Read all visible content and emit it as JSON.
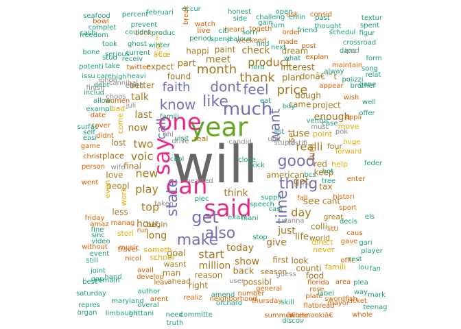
{
  "colors": {
    "green": "#1b9e77",
    "orange": "#d95f02",
    "purple": "#7570b3",
    "pink": "#e7298a",
    "lime": "#66a61e",
    "gold": "#e6ab02",
    "brown": "#a6761d",
    "gray": "#666666",
    "grayLight": "#8a8a8a",
    "tealLight": "#5fae8f"
  },
  "words": [
    {
      "text": "will",
      "color": "gray"
    },
    {
      "text": "year",
      "color": "lime"
    },
    {
      "text": "one",
      "color": "pink"
    },
    {
      "text": "said",
      "color": "pink"
    },
    {
      "text": "can",
      "color": "pink"
    },
    {
      "text": "say",
      "color": "pink"
    },
    {
      "text": "much",
      "color": "purple"
    },
    {
      "text": "also",
      "color": "purple"
    },
    {
      "text": "get",
      "color": "purple"
    },
    {
      "text": "thing",
      "color": "purple"
    },
    {
      "text": "good",
      "color": "purple"
    },
    {
      "text": "make",
      "color": "purple"
    },
    {
      "text": "like",
      "color": "purple"
    },
    {
      "text": "time",
      "color": "purple"
    },
    {
      "text": "state",
      "color": "purple"
    },
    {
      "text": "feel",
      "color": "purple"
    },
    {
      "text": "want",
      "color": "purple"
    },
    {
      "text": "know",
      "color": "purple"
    },
    {
      "text": "dont",
      "color": "purple"
    },
    {
      "text": "faith",
      "color": "purple"
    },
    {
      "text": "call",
      "color": "purple"
    },
    {
      "text": "price",
      "color": "brown"
    },
    {
      "text": "thank",
      "color": "brown"
    },
    {
      "text": "month",
      "color": "brown"
    },
    {
      "text": "new",
      "color": "brown"
    },
    {
      "text": "two",
      "color": "brown"
    },
    {
      "text": "day",
      "color": "brown"
    },
    {
      "text": "top",
      "color": "brown"
    },
    {
      "text": "play",
      "color": "brown"
    },
    {
      "text": "product",
      "color": "brown"
    },
    {
      "text": "today",
      "color": "brown"
    },
    {
      "text": "start",
      "color": "brown"
    },
    {
      "text": "give",
      "color": "brown"
    },
    {
      "text": "show",
      "color": "brown"
    },
    {
      "text": "million",
      "color": "brown"
    },
    {
      "text": "just",
      "color": "brown"
    },
    {
      "text": "realli",
      "color": "brown"
    },
    {
      "text": "see",
      "color": "brown"
    },
    {
      "text": "voic",
      "color": "brown"
    },
    {
      "text": "hour",
      "color": "brown"
    },
    {
      "text": "long",
      "color": "brown"
    },
    {
      "text": "now",
      "color": "brown"
    },
    {
      "text": "last",
      "color": "brown"
    },
    {
      "text": "meet",
      "color": "brown"
    },
    {
      "text": "check",
      "color": "brown"
    },
    {
      "text": "use",
      "color": "brown"
    },
    {
      "text": "enough",
      "color": "brown"
    },
    {
      "text": "interest",
      "color": "brown"
    },
    {
      "text": "think",
      "color": "brown"
    },
    {
      "text": "got",
      "color": "brown"
    },
    {
      "text": "life",
      "color": "brown"
    },
    {
      "text": "talk",
      "color": "brown"
    },
    {
      "text": "goal",
      "color": "brown"
    },
    {
      "text": "back",
      "color": "brown"
    },
    {
      "text": "part",
      "color": "brown"
    },
    {
      "text": "plan",
      "color": "brown"
    },
    {
      "text": "expect",
      "color": "brown"
    },
    {
      "text": "happi",
      "color": "brown"
    },
    {
      "text": "paint",
      "color": "brown"
    },
    {
      "text": "found",
      "color": "brown"
    },
    {
      "text": "dream",
      "color": "brown"
    },
    {
      "text": "donâ€™t",
      "color": "brown"
    },
    {
      "text": "dough",
      "color": "brown"
    },
    {
      "text": "project",
      "color": "brown"
    },
    {
      "text": "better",
      "color": "brown"
    },
    {
      "text": "final",
      "color": "brown"
    },
    {
      "text": "lost",
      "color": "brown"
    },
    {
      "text": "place",
      "color": "brown"
    },
    {
      "text": "love",
      "color": "brown"
    },
    {
      "text": "peopl",
      "color": "brown"
    },
    {
      "text": "less",
      "color": "brown"
    },
    {
      "text": "begin",
      "color": "brown"
    },
    {
      "text": "wasnt",
      "color": "brown"
    },
    {
      "text": "man",
      "color": "brown"
    },
    {
      "text": "ahead",
      "color": "brown"
    },
    {
      "text": "right",
      "color": "brown"
    },
    {
      "text": "reason",
      "color": "brown"
    },
    {
      "text": "possibl",
      "color": "brown"
    },
    {
      "text": "season",
      "color": "brown"
    },
    {
      "text": "keep",
      "color": "brown"
    },
    {
      "text": "red",
      "color": "brown"
    },
    {
      "text": "turn",
      "color": "brown"
    },
    {
      "text": "cant",
      "color": "brown"
    },
    {
      "text": "colli",
      "color": "brown"
    },
    {
      "text": "world",
      "color": "brown"
    },
    {
      "text": "great",
      "color": "brown"
    },
    {
      "text": "first",
      "color": "brown"
    },
    {
      "text": "look",
      "color": "brown"
    },
    {
      "text": "counti",
      "color": "brown"
    },
    {
      "text": "food",
      "color": "brown"
    },
    {
      "text": "american",
      "color": "brown"
    },
    {
      "text": "came",
      "color": "brown"
    },
    {
      "text": "set",
      "color": "brown"
    },
    {
      "text": "tax",
      "color": "brown"
    },
    {
      "text": "four",
      "color": "brown"
    },
    {
      "text": "real",
      "color": "brown"
    },
    {
      "text": "stori",
      "color": "gold"
    },
    {
      "text": "someth",
      "color": "gold"
    },
    {
      "text": "school",
      "color": "gold"
    },
    {
      "text": "even",
      "color": "gold"
    },
    {
      "text": "work",
      "color": "gold"
    },
    {
      "text": "bad",
      "color": "gold"
    },
    {
      "text": "come",
      "color": "gold"
    },
    {
      "text": "help",
      "color": "gold"
    },
    {
      "text": "famili",
      "color": "gold"
    },
    {
      "text": "point",
      "color": "gold"
    },
    {
      "text": "move",
      "color": "gold"
    },
    {
      "text": "forward",
      "color": "gold"
    },
    {
      "text": "huge",
      "color": "gold"
    },
    {
      "text": "never",
      "color": "gold"
    },
    {
      "text": "direct",
      "color": "gold"
    },
    {
      "text": "â€™s",
      "color": "gold"
    },
    {
      "text": "â€œ",
      "color": "gold"
    },
    {
      "text": "twitter",
      "color": "orange"
    },
    {
      "text": "women",
      "color": "orange"
    },
    {
      "text": "book",
      "color": "orange"
    },
    {
      "text": "watch",
      "color": "orange"
    },
    {
      "text": "live",
      "color": "orange"
    },
    {
      "text": "heard",
      "color": "orange"
    },
    {
      "text": "weekend",
      "color": "orange"
    },
    {
      "text": "order",
      "color": "orange"
    },
    {
      "text": "togeth",
      "color": "orange"
    },
    {
      "text": "made",
      "color": "orange"
    },
    {
      "text": "ask",
      "color": "orange"
    },
    {
      "text": "consid",
      "color": "orange"
    },
    {
      "text": "break",
      "color": "orange"
    },
    {
      "text": "post",
      "color": "orange"
    },
    {
      "text": "explan",
      "color": "orange"
    },
    {
      "text": "appear",
      "color": "orange"
    },
    {
      "text": "maintain",
      "color": "orange"
    },
    {
      "text": "wish",
      "color": "orange"
    },
    {
      "text": "appli",
      "color": "orange"
    },
    {
      "text": "enter",
      "color": "orange"
    },
    {
      "text": "histori",
      "color": "orange"
    },
    {
      "text": "sport",
      "color": "orange"
    },
    {
      "text": "caus",
      "color": "orange"
    },
    {
      "text": "offic",
      "color": "orange"
    },
    {
      "text": "area",
      "color": "orange"
    },
    {
      "text": "run",
      "color": "orange"
    },
    {
      "text": "travel",
      "color": "orange"
    },
    {
      "text": "nicol",
      "color": "orange"
    },
    {
      "text": "avail",
      "color": "orange"
    },
    {
      "text": "develop",
      "color": "orange"
    },
    {
      "text": "leav",
      "color": "orange"
    },
    {
      "text": "arent",
      "color": "orange"
    },
    {
      "text": "realiz",
      "color": "orange"
    },
    {
      "text": "neighborhood",
      "color": "orange"
    },
    {
      "text": "number",
      "color": "orange"
    },
    {
      "text": "thursday",
      "color": "orange"
    },
    {
      "text": "general",
      "color": "orange"
    },
    {
      "text": "florida",
      "color": "orange"
    },
    {
      "text": "rose",
      "color": "orange"
    },
    {
      "text": "plate",
      "color": "orange"
    },
    {
      "text": "mayor",
      "color": "orange"
    },
    {
      "text": "summer",
      "color": "orange"
    },
    {
      "text": "flatbread",
      "color": "orange"
    },
    {
      "text": "â€œsnookiâ€",
      "color": "orange"
    },
    {
      "text": "white",
      "color": "orange"
    },
    {
      "text": "whole",
      "color": "orange"
    },
    {
      "text": "swordfish",
      "color": "orange"
    },
    {
      "text": "ticket",
      "color": "orange"
    },
    {
      "text": "manag",
      "color": "orange"
    },
    {
      "text": "friday",
      "color": "orange"
    },
    {
      "text": "game",
      "color": "orange"
    },
    {
      "text": "christ",
      "color": "orange"
    },
    {
      "text": "person",
      "color": "orange"
    },
    {
      "text": "date",
      "color": "orange"
    },
    {
      "text": "cover",
      "color": "orange"
    },
    {
      "text": "didnt",
      "color": "orange"
    },
    {
      "text": "went",
      "color": "orange"
    },
    {
      "text": "amaz",
      "color": "orange"
    },
    {
      "text": "without",
      "color": "orange"
    },
    {
      "text": "music",
      "color": "orange"
    },
    {
      "text": "littl",
      "color": "orange"
    },
    {
      "text": "gave",
      "color": "orange"
    },
    {
      "text": "fall",
      "color": "orange"
    },
    {
      "text": "bowl",
      "color": "orange"
    },
    {
      "text": "seafood",
      "color": "green"
    },
    {
      "text": "percent",
      "color": "green"
    },
    {
      "text": "februari",
      "color": "green"
    },
    {
      "text": "occur",
      "color": "green"
    },
    {
      "text": "honest",
      "color": "green"
    },
    {
      "text": "side",
      "color": "green"
    },
    {
      "text": "challeng",
      "color": "green"
    },
    {
      "text": "open",
      "color": "green"
    },
    {
      "text": "enlin",
      "color": "green"
    },
    {
      "text": "past",
      "color": "green"
    },
    {
      "text": "complet",
      "color": "green"
    },
    {
      "text": "prevent",
      "color": "green"
    },
    {
      "text": "couldnt",
      "color": "green"
    },
    {
      "text": "produc",
      "color": "green"
    },
    {
      "text": "gain",
      "color": "green"
    },
    {
      "text": "turn",
      "color": "green"
    },
    {
      "text": "friend",
      "color": "green"
    },
    {
      "text": "thought",
      "color": "green"
    },
    {
      "text": "schedul",
      "color": "green"
    },
    {
      "text": "figur",
      "color": "green"
    },
    {
      "text": "cash",
      "color": "green"
    },
    {
      "text": "freedom",
      "color": "green"
    },
    {
      "text": "took",
      "color": "green"
    },
    {
      "text": "ghost",
      "color": "green"
    },
    {
      "text": "winter",
      "color": "green"
    },
    {
      "text": "period",
      "color": "green"
    },
    {
      "text": "spend",
      "color": "green"
    },
    {
      "text": "jealous",
      "color": "green"
    },
    {
      "text": "find",
      "color": "green"
    },
    {
      "text": "what",
      "color": "green"
    },
    {
      "text": "next",
      "color": "green"
    },
    {
      "text": "bone",
      "color": "green"
    },
    {
      "text": "stud",
      "color": "green"
    },
    {
      "text": "receiv",
      "color": "green"
    },
    {
      "text": "current",
      "color": "green"
    },
    {
      "text": "serious",
      "color": "green"
    },
    {
      "text": "take",
      "color": "green"
    },
    {
      "text": "heavi",
      "color": "green"
    },
    {
      "text": "potenti",
      "color": "green"
    },
    {
      "text": "issu",
      "color": "green"
    },
    {
      "text": "care",
      "color": "green"
    },
    {
      "text": "high",
      "color": "green"
    },
    {
      "text": "debt",
      "color": "green"
    },
    {
      "text": "includ",
      "color": "green"
    },
    {
      "text": "allow",
      "color": "green"
    },
    {
      "text": "exampl",
      "color": "green"
    },
    {
      "text": "surfac",
      "color": "green"
    },
    {
      "text": "self",
      "color": "green"
    },
    {
      "text": "easi",
      "color": "green"
    },
    {
      "text": "fine",
      "color": "green"
    },
    {
      "text": "sinc",
      "color": "green"
    },
    {
      "text": "video",
      "color": "green"
    },
    {
      "text": "event",
      "color": "green"
    },
    {
      "text": "still",
      "color": "green"
    },
    {
      "text": "joint",
      "color": "green"
    },
    {
      "text": "gop",
      "color": "green"
    },
    {
      "text": "remain",
      "color": "green"
    },
    {
      "text": "hand",
      "color": "green"
    },
    {
      "text": "best",
      "color": "green"
    },
    {
      "text": "author",
      "color": "green"
    },
    {
      "text": "saturday",
      "color": "green"
    },
    {
      "text": "maryland",
      "color": "green"
    },
    {
      "text": "overal",
      "color": "green"
    },
    {
      "text": "repres",
      "color": "green"
    },
    {
      "text": "organ",
      "color": "green"
    },
    {
      "text": "limbaugh",
      "color": "green"
    },
    {
      "text": "brittani",
      "color": "green"
    },
    {
      "text": "need",
      "color": "green"
    },
    {
      "text": "truth",
      "color": "green"
    },
    {
      "text": "committe",
      "color": "green"
    },
    {
      "text": "discov",
      "color": "green"
    },
    {
      "text": "amend",
      "color": "green"
    },
    {
      "text": "orchard",
      "color": "green"
    },
    {
      "text": "skill",
      "color": "green"
    },
    {
      "text": "label",
      "color": "green"
    },
    {
      "text": "plea",
      "color": "green"
    },
    {
      "text": "teenag",
      "color": "green"
    },
    {
      "text": "mark",
      "color": "green"
    },
    {
      "text": "way",
      "color": "green"
    },
    {
      "text": "rest",
      "color": "green"
    },
    {
      "text": "player",
      "color": "green"
    },
    {
      "text": "gari",
      "color": "green"
    },
    {
      "text": "fan",
      "color": "green"
    },
    {
      "text": "lou",
      "color": "green"
    },
    {
      "text": "els",
      "color": "green"
    },
    {
      "text": "decis",
      "color": "green"
    },
    {
      "text": "feder",
      "color": "green"
    },
    {
      "text": "offer",
      "color": "green"
    },
    {
      "text": "well",
      "color": "green"
    },
    {
      "text": "gone",
      "color": "green"
    },
    {
      "text": "relat",
      "color": "green"
    },
    {
      "text": "form",
      "color": "green"
    },
    {
      "text": "song",
      "color": "green"
    },
    {
      "text": "polizzi",
      "color": "green"
    },
    {
      "text": "danc",
      "color": "green"
    },
    {
      "text": "spent",
      "color": "green"
    },
    {
      "text": "textur",
      "color": "green"
    },
    {
      "text": "crossroad",
      "color": "green"
    },
    {
      "text": "brother",
      "color": "green"
    },
    {
      "text": "alway",
      "color": "green"
    },
    {
      "text": "lord",
      "color": "green"
    },
    {
      "text": "citi",
      "color": "green"
    },
    {
      "text": "sorri",
      "color": "green"
    },
    {
      "text": "list",
      "color": "green"
    },
    {
      "text": "buy",
      "color": "green"
    },
    {
      "text": "eat",
      "color": "green"
    },
    {
      "text": "kick",
      "color": "green"
    },
    {
      "text": "close",
      "color": "green"
    },
    {
      "text": "piec",
      "color": "green"
    },
    {
      "text": "exact",
      "color": "green"
    },
    {
      "text": "mani",
      "color": "green"
    },
    {
      "text": "speech",
      "color": "green"
    },
    {
      "text": "suppli",
      "color": "green"
    },
    {
      "text": "cast",
      "color": "green"
    },
    {
      "text": "hot",
      "color": "green"
    },
    {
      "text": "case",
      "color": "green"
    },
    {
      "text": "bcs",
      "color": "green"
    },
    {
      "text": "tree",
      "color": "green"
    },
    {
      "text": "ventur",
      "color": "green"
    },
    {
      "text": "visit",
      "color": "green"
    },
    {
      "text": "cool",
      "color": "green"
    },
    {
      "text": "famili",
      "color": "green"
    },
    {
      "text": "stop",
      "color": "green"
    },
    {
      "text": "guess",
      "color": "grayLight"
    },
    {
      "text": "user",
      "color": "grayLight"
    },
    {
      "text": "wanna",
      "color": "grayLight"
    },
    {
      "text": "must",
      "color": "grayLight"
    },
    {
      "text": "pok",
      "color": "grayLight"
    },
    {
      "text": "unit",
      "color": "grayLight"
    },
    {
      "text": "ipod",
      "color": "grayLight"
    },
    {
      "text": "choos",
      "color": "grayLight"
    },
    {
      "text": "finish",
      "color": "grayLight"
    },
    {
      "text": "wife",
      "color": "grayLight"
    },
    {
      "text": "cannibal",
      "color": "grayLight"
    },
    {
      "text": "iphon",
      "color": "grayLight"
    },
    {
      "text": "juli",
      "color": "grayLight"
    },
    {
      "text": "earth",
      "color": "grayLight"
    },
    {
      "text": "nhl",
      "color": "grayLight"
    },
    {
      "text": "taken",
      "color": "grayLight"
    },
    {
      "text": "drive",
      "color": "grayLight"
    },
    {
      "text": "hearted",
      "color": "grayLight"
    },
    {
      "text": "candid",
      "color": "grayLight"
    },
    {
      "text": "stupid",
      "color": "grayLight"
    },
    {
      "text": "testifi",
      "color": "grayLight"
    }
  ]
}
